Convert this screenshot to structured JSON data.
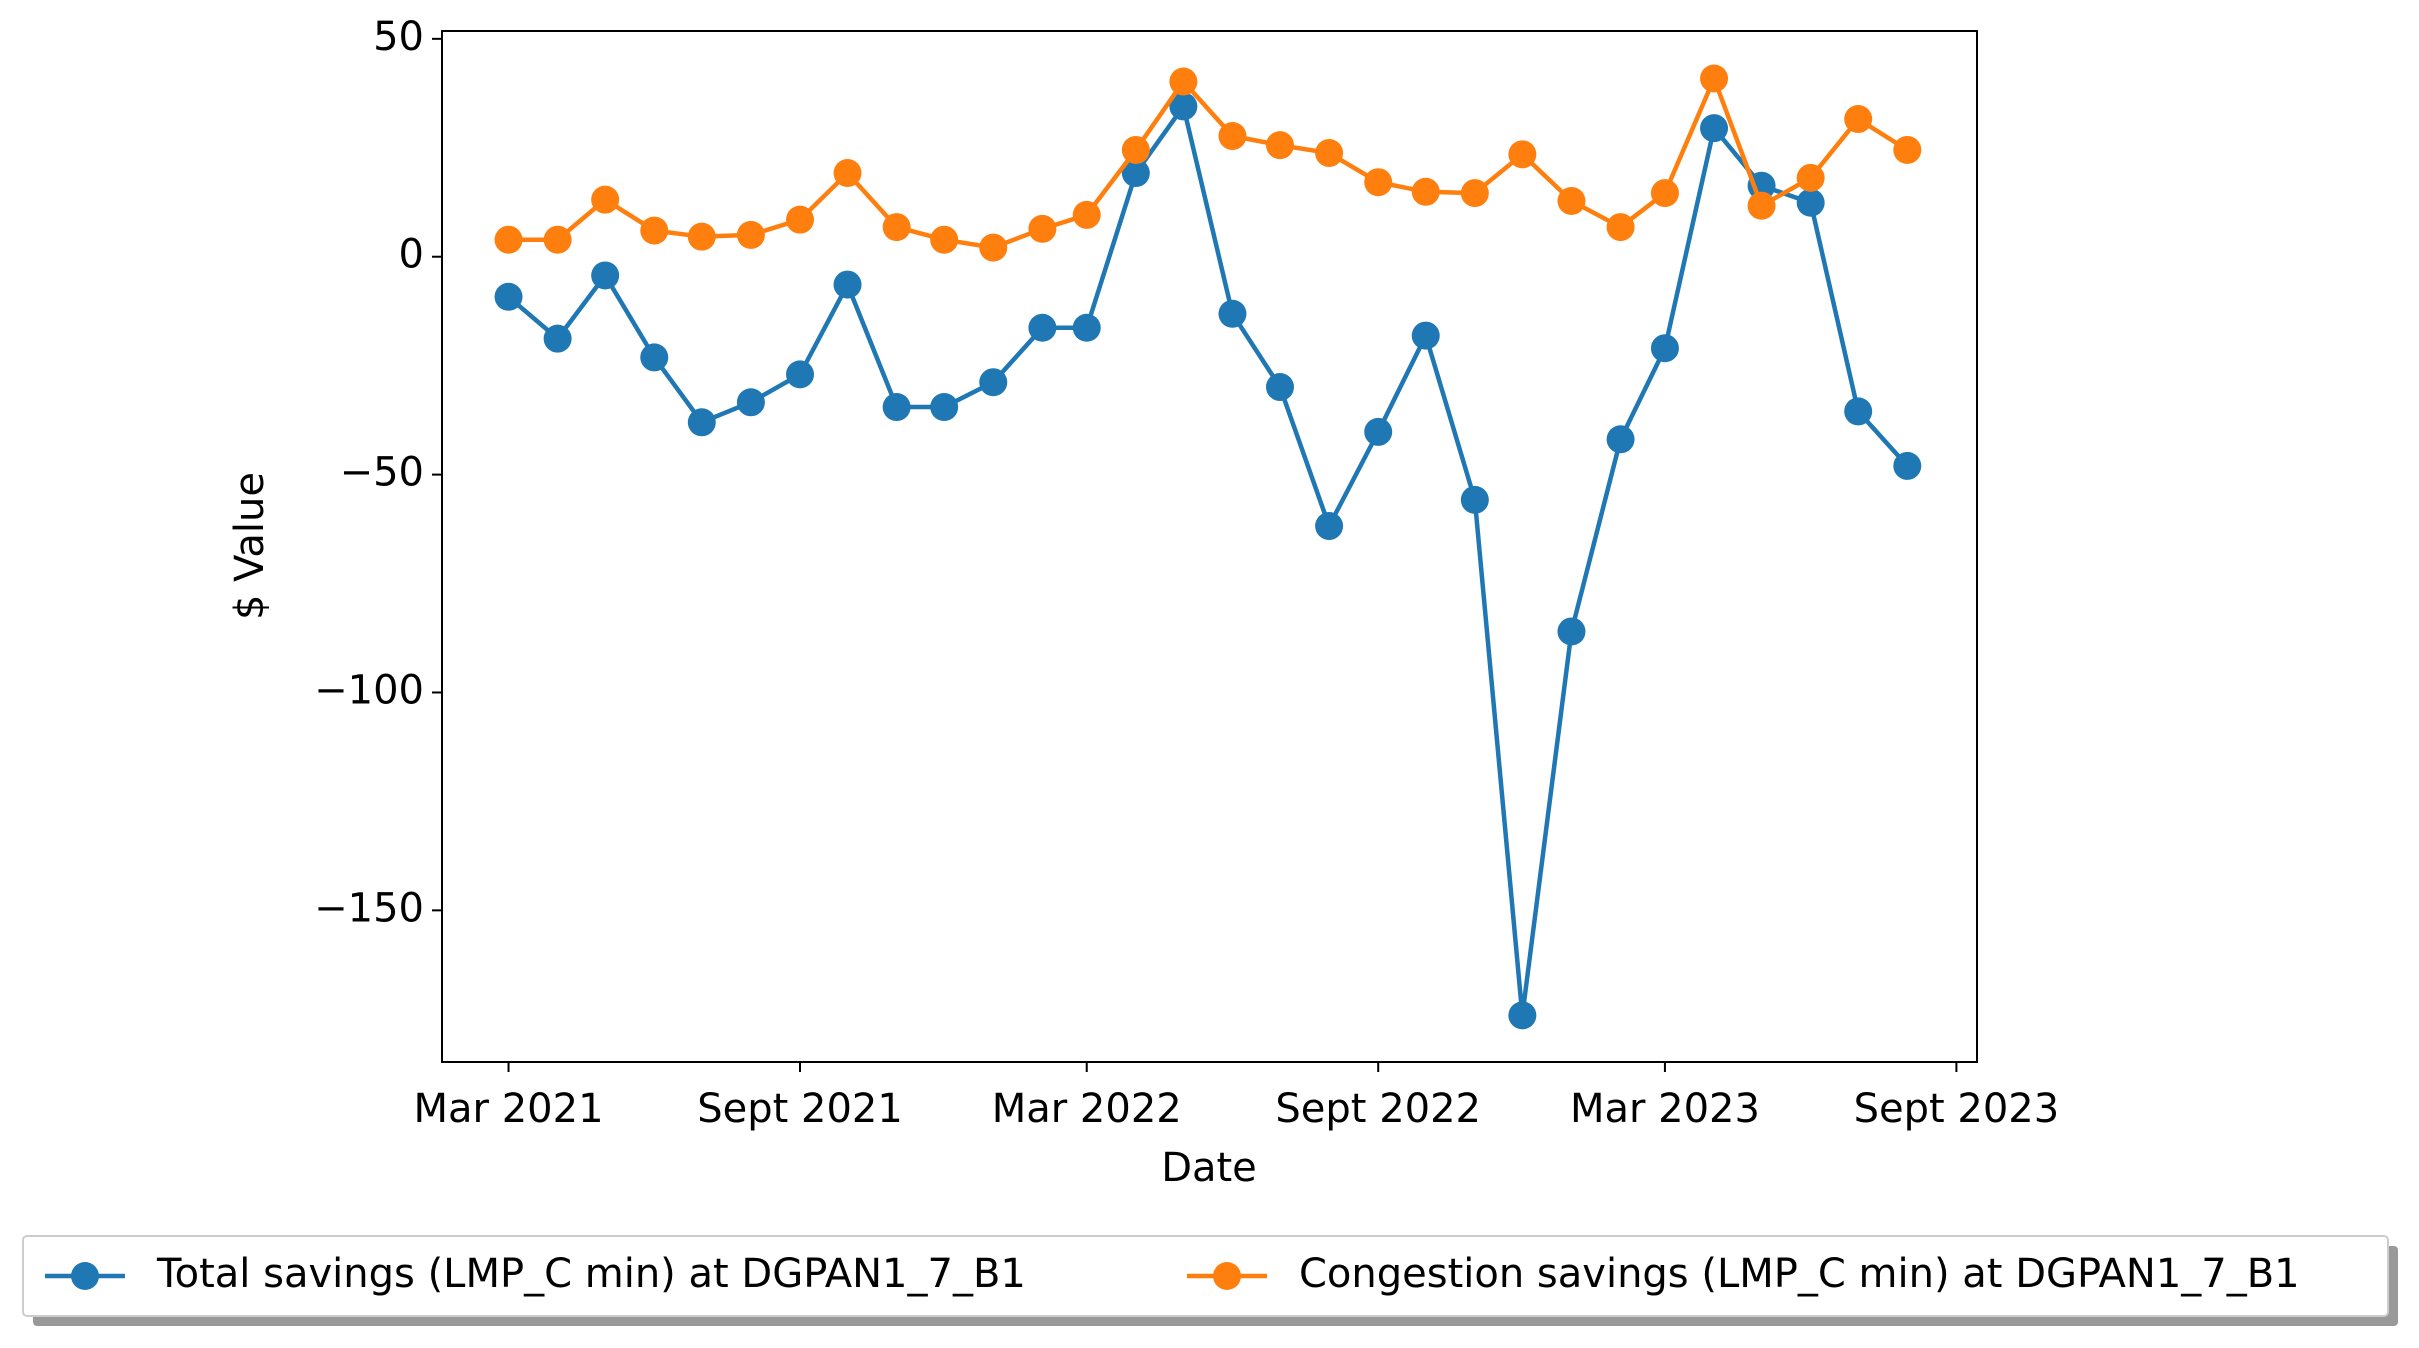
{
  "chart_data": {
    "type": "line",
    "x_label": "Date",
    "y_label": "$ Value",
    "x": [
      "2021-03",
      "2021-04",
      "2021-05",
      "2021-06",
      "2021-07",
      "2021-08",
      "2021-09",
      "2021-10",
      "2021-11",
      "2021-12",
      "2022-01",
      "2022-02",
      "2022-03",
      "2022-04",
      "2022-05",
      "2022-06",
      "2022-07",
      "2022-08",
      "2022-09",
      "2022-10",
      "2022-11",
      "2022-12",
      "2023-01",
      "2023-02",
      "2023-03",
      "2023-04",
      "2023-05",
      "2023-06",
      "2023-07",
      "2023-08"
    ],
    "series": [
      {
        "name": "Total savings (LMP_C min) at DGPAN1_7_B1",
        "color": "#1f77b4",
        "values": [
          -9.2,
          -18.8,
          -4.3,
          -23.1,
          -38,
          -33.4,
          -27,
          -6.4,
          -34.5,
          -34.5,
          -28.8,
          -16.3,
          -16.3,
          19.2,
          34.5,
          -13.1,
          -29.9,
          -61.8,
          -40.2,
          -18.1,
          -55.8,
          -174.1,
          -86,
          -41.9,
          -21,
          29.5,
          16.3,
          12.4,
          -35.5,
          -48
        ]
      },
      {
        "name": "Congestion savings (LMP_C min) at DGPAN1_7_B1",
        "color": "#ff7f0e",
        "values": [
          3.9,
          3.9,
          13.1,
          6,
          4.6,
          5,
          8.5,
          19.2,
          6.8,
          3.9,
          2.1,
          6.4,
          9.6,
          24.5,
          40.2,
          27.7,
          25.6,
          23.8,
          17.1,
          14.9,
          14.6,
          23.5,
          12.8,
          6.8,
          14.6,
          40.9,
          11.7,
          18.1,
          31.6,
          24.5
        ]
      }
    ],
    "xlim": [
      "2021-01-18",
      "2023-09-14"
    ],
    "xticks": [
      {
        "value": "2021-03",
        "label": "Mar 2021"
      },
      {
        "value": "2021-09",
        "label": "Sept 2021"
      },
      {
        "value": "2022-03",
        "label": "Mar 2022"
      },
      {
        "value": "2022-09",
        "label": "Sept 2022"
      },
      {
        "value": "2023-03",
        "label": "Mar 2023"
      },
      {
        "value": "2023-09",
        "label": "Sept 2023"
      }
    ],
    "ylim": [
      -184.8,
      51.8
    ],
    "yticks": [
      {
        "value": -150,
        "label": "−150"
      },
      {
        "value": -100,
        "label": "−100"
      },
      {
        "value": -50,
        "label": "−50"
      },
      0,
      50
    ],
    "grid": false,
    "legend": "below"
  }
}
